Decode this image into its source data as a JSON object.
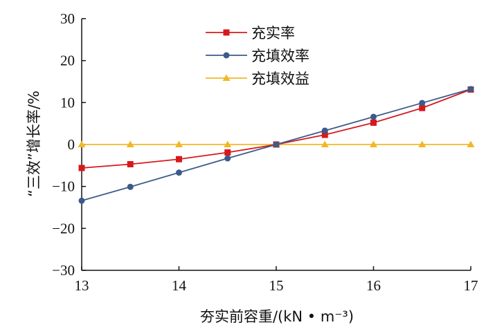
{
  "chart_data": {
    "type": "line",
    "xlabel": "夯实前容重/(kN • m⁻³)",
    "ylabel": "“三效”增长率/%",
    "xlim": [
      13,
      17
    ],
    "ylim": [
      -30,
      30
    ],
    "xticks": [
      "13",
      "14",
      "15",
      "16",
      "17"
    ],
    "yticks": [
      "30",
      "20",
      "10",
      "0",
      "−10",
      "−20",
      "−30"
    ],
    "x": [
      13,
      13.5,
      14,
      14.5,
      15,
      15.5,
      16,
      16.5,
      17
    ],
    "grid": false,
    "legend_position": "top-center",
    "series": [
      {
        "name": "充实率",
        "color": "#d7191c",
        "marker": "square",
        "values": [
          -5.6,
          -4.7,
          -3.5,
          -1.9,
          0,
          2.3,
          5.2,
          8.7,
          13.1
        ]
      },
      {
        "name": "充填效率",
        "color": "#3c5a8a",
        "marker": "circle",
        "values": [
          -13.4,
          -10.1,
          -6.7,
          -3.3,
          0,
          3.3,
          6.6,
          9.9,
          13.2
        ]
      },
      {
        "name": "充填效益",
        "color": "#f2b824",
        "marker": "triangle",
        "values": [
          0,
          0,
          0,
          0,
          0,
          0,
          0,
          0,
          0
        ]
      }
    ]
  }
}
